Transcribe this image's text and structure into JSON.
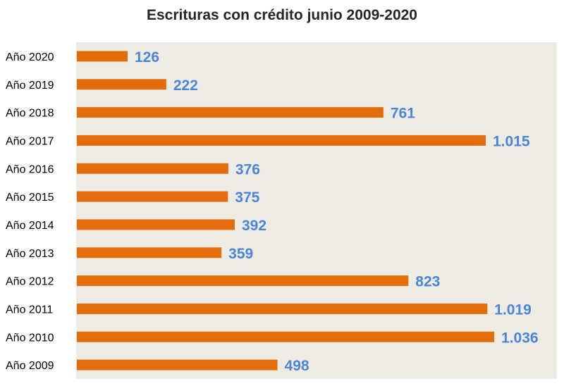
{
  "chart_data": {
    "type": "bar",
    "orientation": "horizontal",
    "title": "Escrituras con crédito junio 2009-2020",
    "categories": [
      "Año 2020",
      "Año 2019",
      "Año 2018",
      "Año 2017",
      "Año 2016",
      "Año 2015",
      "Año 2014",
      "Año 2013",
      "Año 2012",
      "Año 2011",
      "Año 2010",
      "Año 2009"
    ],
    "values": [
      126,
      222,
      761,
      1015,
      376,
      375,
      392,
      359,
      823,
      1019,
      1036,
      498
    ],
    "value_labels": [
      "126",
      "222",
      "761",
      "1.015",
      "376",
      "375",
      "392",
      "359",
      "823",
      "1.019",
      "1.036",
      "498"
    ],
    "xlim": [
      0,
      1050
    ],
    "grid": false,
    "legend": "none",
    "colors": {
      "bar": "#E46C0A",
      "value_label": "#4A86D8",
      "plot_background": "#EEEBE4",
      "category_label": "#000000",
      "title": "#262626"
    }
  }
}
